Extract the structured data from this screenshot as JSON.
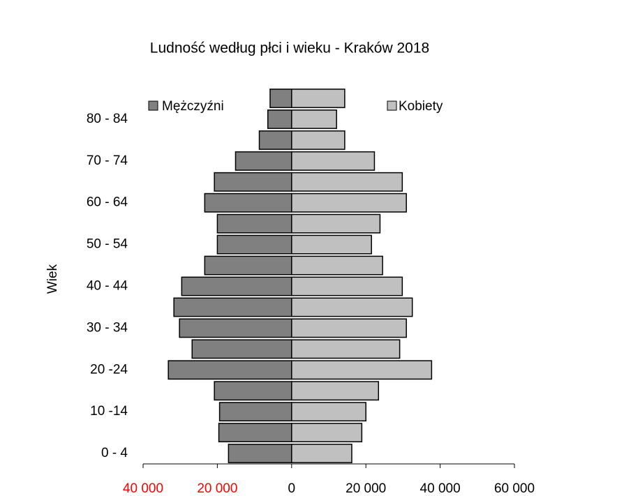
{
  "chart_data": {
    "type": "bar",
    "title": "Ludność według płci i wieku - Kraków 2018",
    "y_label": "Wiek",
    "categories": [
      "0 - 4",
      null,
      "10 -14",
      null,
      "20 -24",
      null,
      "30 - 34",
      null,
      "40 - 44",
      null,
      "50 - 54",
      null,
      "60 - 64",
      null,
      "70 - 74",
      null,
      "80 - 84",
      null
    ],
    "series": [
      {
        "name": "Mężczyźni",
        "color": "#808080",
        "values": [
          -17000,
          -19600,
          -19400,
          -20800,
          -33200,
          -26800,
          -30200,
          -31700,
          -29600,
          -23400,
          -20000,
          -20000,
          -23400,
          -20800,
          -15100,
          -8700,
          -6400,
          -5800
        ]
      },
      {
        "name": "Kobiety",
        "color": "#c0c0c0",
        "values": [
          16200,
          18900,
          20000,
          23400,
          37700,
          29100,
          30900,
          32500,
          29800,
          24500,
          21500,
          23800,
          30900,
          29800,
          22300,
          14300,
          12100,
          14300
        ]
      }
    ],
    "xlim": [
      -40000,
      60000
    ],
    "xticks": [
      {
        "value": -40000,
        "label": "40 000"
      },
      {
        "value": -20000,
        "label": "20 000"
      },
      0,
      {
        "value": 20000,
        "label": "20 000"
      },
      {
        "value": 40000,
        "label": "40 000"
      },
      {
        "value": 60000,
        "label": "60 000"
      }
    ],
    "negative_tick_color": "#ff0000"
  }
}
